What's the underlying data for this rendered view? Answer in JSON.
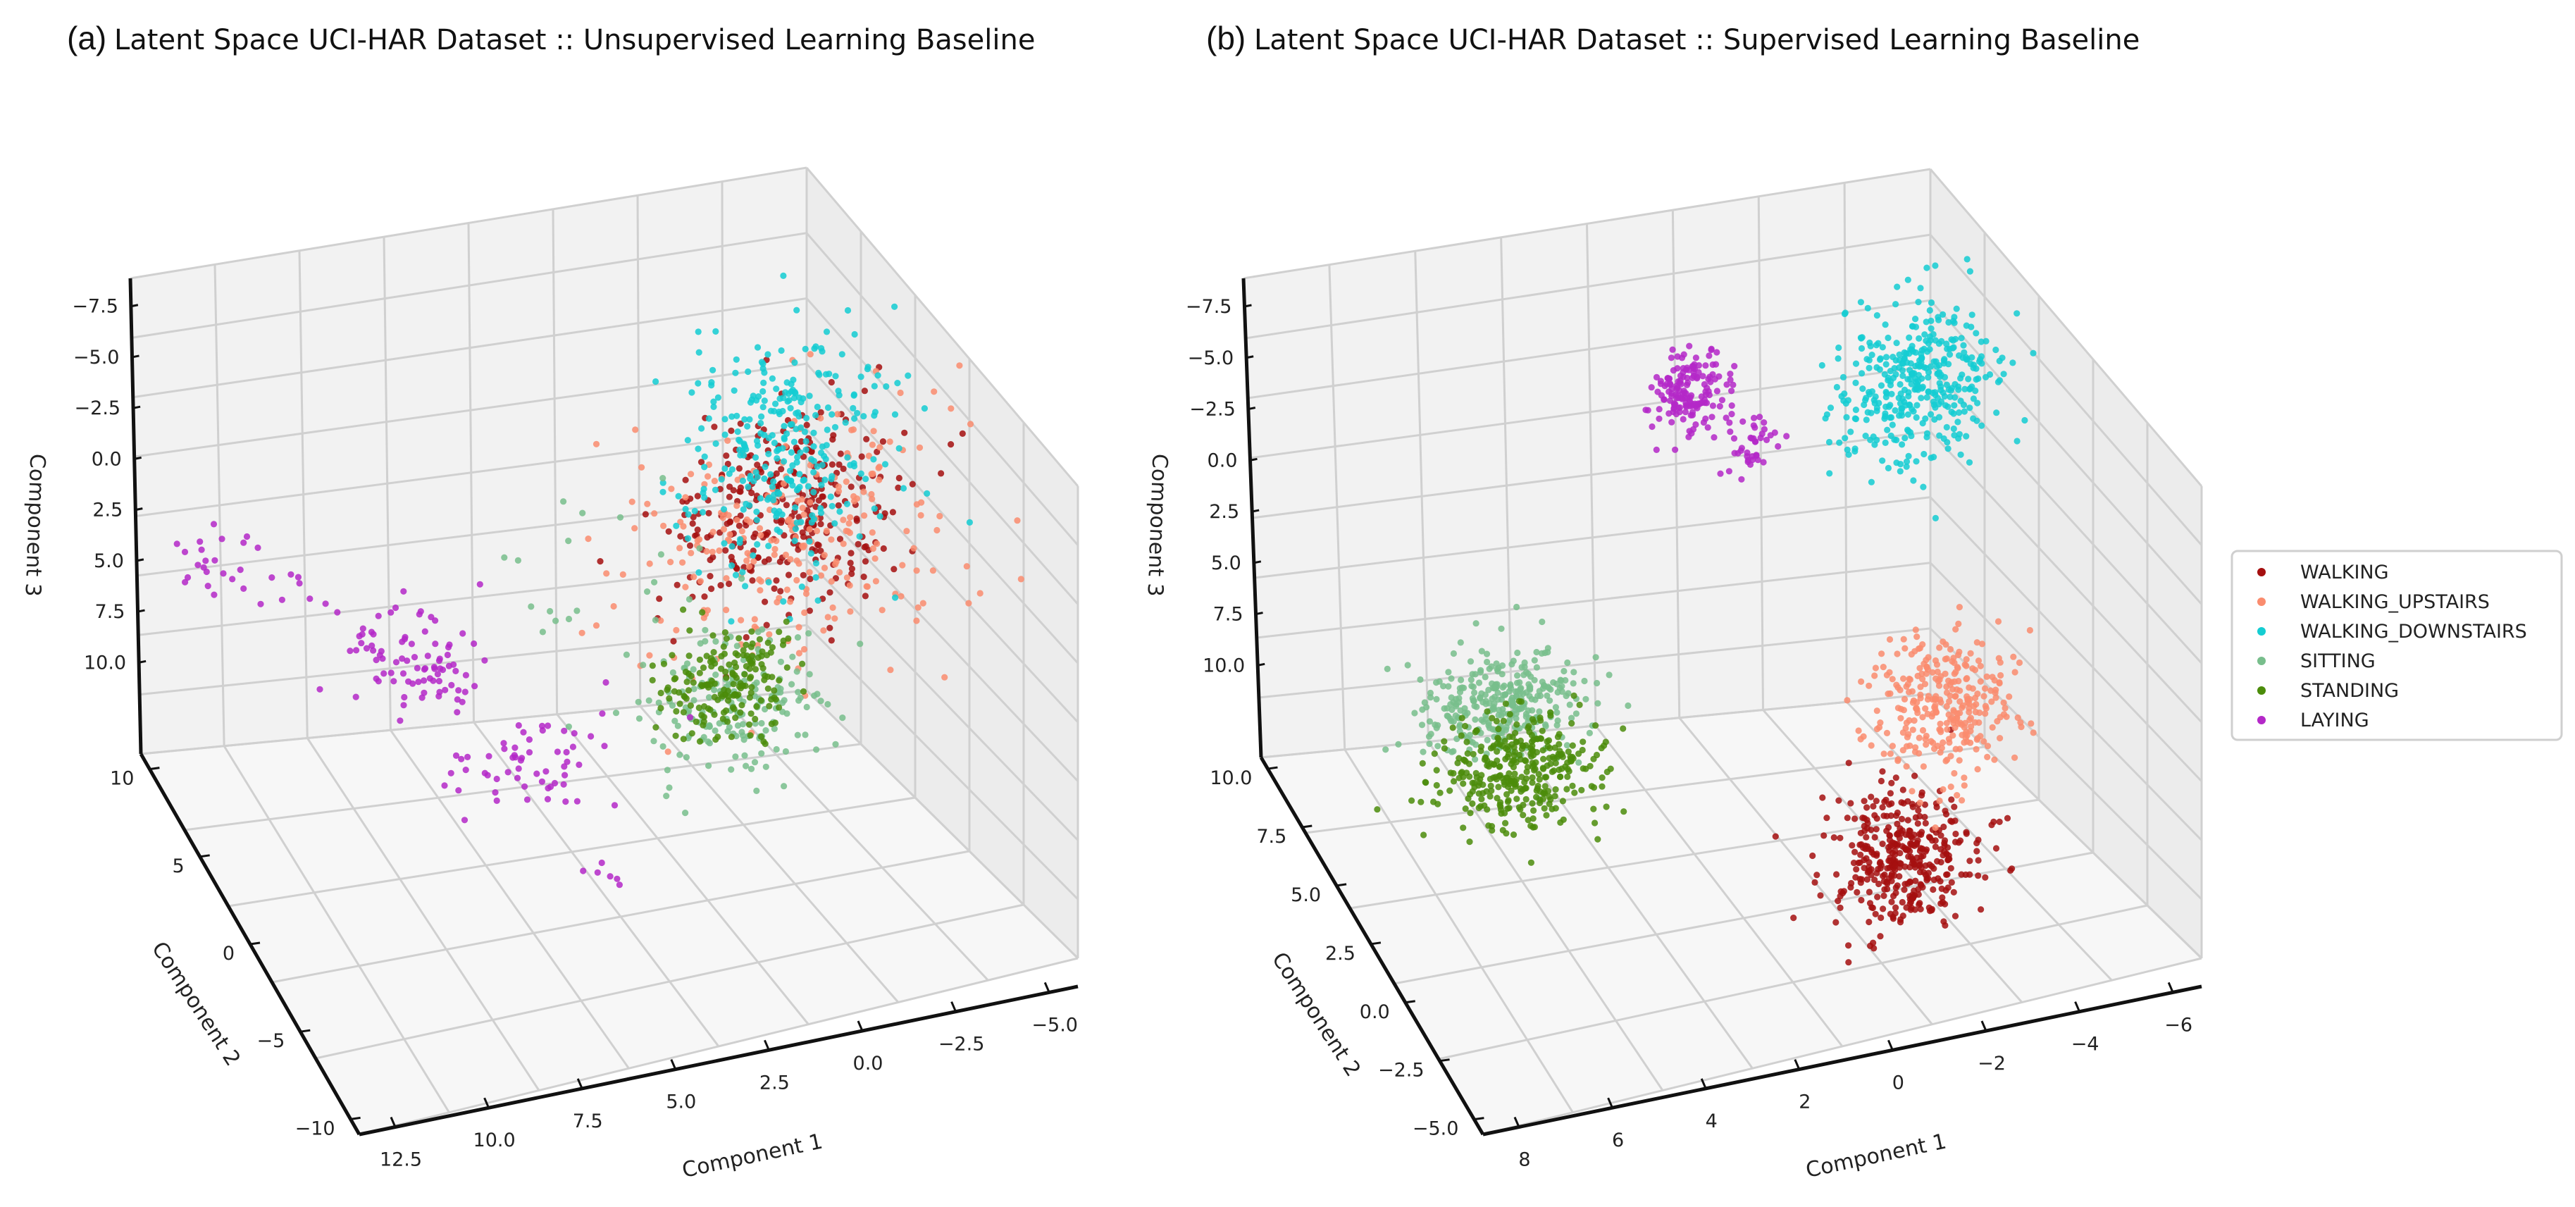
{
  "figure": {
    "panels": [
      {
        "tag": "(a)",
        "title": "Latent Space UCI-HAR Dataset :: Unsupervised Learning Baseline"
      },
      {
        "tag": "(b)",
        "title": "Latent Space UCI-HAR Dataset :: Supervised Learning Baseline"
      }
    ]
  },
  "legend": {
    "entries": [
      {
        "label": "WALKING",
        "color": "#A50F0F"
      },
      {
        "label": "WALKING_UPSTAIRS",
        "color": "#FA8C6E"
      },
      {
        "label": "WALKING_DOWNSTAIRS",
        "color": "#14CDD2"
      },
      {
        "label": "SITTING",
        "color": "#78BE8C"
      },
      {
        "label": "STANDING",
        "color": "#4B8C0A"
      },
      {
        "label": "LAYING",
        "color": "#B428C8"
      }
    ]
  },
  "chart_data": [
    {
      "type": "scatter",
      "dims": 3,
      "title": "(a) Latent Space UCI-HAR Dataset :: Unsupervised Learning Baseline",
      "xlabel": "Component 1",
      "ylabel": "Component 2",
      "zlabel": "Component 3",
      "x_ticks": [
        "12.5",
        "10.0",
        "7.5",
        "5.0",
        "2.5",
        "0.0",
        "−2.5",
        "−5.0"
      ],
      "y_ticks": [
        "−10",
        "−5",
        "0",
        "5",
        "10"
      ],
      "z_ticks": [
        "−7.5",
        "−5.0",
        "−2.5",
        "0.0",
        "2.5",
        "5.0",
        "7.5",
        "10.0"
      ],
      "xlim": [
        13.5,
        -5.5
      ],
      "ylim": [
        -11,
        13.5
      ],
      "zlim": [
        11,
        -8.5
      ],
      "series": [
        {
          "name": "WALKING",
          "color": "#A50F0F",
          "clusters": [
            {
              "center": [
                -1.2,
                4.5,
                1.0
              ],
              "spread": [
                1.4,
                1.4,
                2.0
              ],
              "n": 300
            }
          ]
        },
        {
          "name": "WALKING_UPSTAIRS",
          "color": "#FA8C6E",
          "clusters": [
            {
              "center": [
                -1.5,
                4.0,
                1.6
              ],
              "spread": [
                2.2,
                2.0,
                2.4
              ],
              "n": 240
            }
          ]
        },
        {
          "name": "WALKING_DOWNSTAIRS",
          "color": "#14CDD2",
          "clusters": [
            {
              "center": [
                -1.8,
                6.0,
                -0.5
              ],
              "spread": [
                1.3,
                1.5,
                2.3
              ],
              "n": 300
            }
          ]
        },
        {
          "name": "SITTING",
          "color": "#78BE8C",
          "clusters": [
            {
              "center": [
                0.5,
                2.0,
                6.5
              ],
              "spread": [
                1.2,
                1.5,
                0.9
              ],
              "n": 180
            },
            {
              "center": [
                3.0,
                5.5,
                2.5
              ],
              "spread": [
                2.5,
                2.0,
                1.5
              ],
              "n": 20
            }
          ]
        },
        {
          "name": "STANDING",
          "color": "#4B8C0A",
          "clusters": [
            {
              "center": [
                0.5,
                3.0,
                6.3
              ],
              "spread": [
                0.9,
                1.0,
                0.8
              ],
              "n": 180
            }
          ]
        },
        {
          "name": "LAYING",
          "color": "#B428C8",
          "clusters": [
            {
              "center": [
                12.0,
                11.5,
                2.5
              ],
              "spread": [
                0.6,
                0.4,
                0.8
              ],
              "n": 22
            },
            {
              "center": [
                9.7,
                11.5,
                4.5
              ],
              "spread": [
                0.5,
                0.5,
                0.4
              ],
              "n": 8
            },
            {
              "center": [
                7.5,
                10.5,
                7.0
              ],
              "spread": [
                0.8,
                0.6,
                0.8
              ],
              "n": 45
            },
            {
              "center": [
                6.5,
                9.5,
                8.0
              ],
              "spread": [
                0.7,
                0.6,
                0.6
              ],
              "n": 40
            },
            {
              "center": [
                5.0,
                5.0,
                9.0
              ],
              "spread": [
                1.2,
                1.2,
                0.5
              ],
              "n": 60
            },
            {
              "center": [
                5.5,
                -4.0,
                7.8
              ],
              "spread": [
                0.3,
                0.3,
                0.3
              ],
              "n": 6
            }
          ]
        }
      ]
    },
    {
      "type": "scatter",
      "dims": 3,
      "title": "(b) Latent Space UCI-HAR Dataset :: Supervised Learning Baseline",
      "xlabel": "Component 1",
      "ylabel": "Component 2",
      "zlabel": "Component 3",
      "x_ticks": [
        "8",
        "6",
        "4",
        "2",
        "0",
        "−2",
        "−4",
        "−6"
      ],
      "y_ticks": [
        "−5.0",
        "−2.5",
        "0.0",
        "2.5",
        "5.0",
        "7.5",
        "10.0"
      ],
      "z_ticks": [
        "−7.5",
        "−5.0",
        "−2.5",
        "0.0",
        "2.5",
        "5.0",
        "7.5",
        "10.0"
      ],
      "xlim": [
        9,
        -7.5
      ],
      "ylim": [
        -6,
        12
      ],
      "zlim": [
        11,
        -8.5
      ],
      "series": [
        {
          "name": "WALKING",
          "color": "#A50F0F",
          "clusters": [
            {
              "center": [
                -1.8,
                -2.0,
                7.8
              ],
              "spread": [
                0.8,
                0.9,
                1.1
              ],
              "n": 380
            }
          ]
        },
        {
          "name": "WALKING_UPSTAIRS",
          "color": "#FA8C6E",
          "clusters": [
            {
              "center": [
                -4.2,
                3.0,
                7.0
              ],
              "spread": [
                0.8,
                1.0,
                1.2
              ],
              "n": 300
            }
          ]
        },
        {
          "name": "WALKING_DOWNSTAIRS",
          "color": "#14CDD2",
          "clusters": [
            {
              "center": [
                -5.0,
                8.0,
                -1.5
              ],
              "spread": [
                0.9,
                0.9,
                1.5
              ],
              "n": 380
            }
          ]
        },
        {
          "name": "SITTING",
          "color": "#78BE8C",
          "clusters": [
            {
              "center": [
                4.5,
                8.2,
                7.5
              ],
              "spread": [
                0.9,
                0.9,
                0.6
              ],
              "n": 320
            }
          ]
        },
        {
          "name": "STANDING",
          "color": "#4B8C0A",
          "clusters": [
            {
              "center": [
                4.5,
                7.0,
                9.3
              ],
              "spread": [
                0.9,
                1.0,
                0.7
              ],
              "n": 340
            }
          ]
        },
        {
          "name": "LAYING",
          "color": "#B428C8",
          "clusters": [
            {
              "center": [
                -0.3,
                10.0,
                -1.5
              ],
              "spread": [
                0.4,
                0.6,
                0.7
              ],
              "n": 160
            },
            {
              "center": [
                -1.7,
                10.0,
                1.3
              ],
              "spread": [
                0.3,
                0.5,
                0.5
              ],
              "n": 40
            }
          ]
        }
      ]
    }
  ]
}
